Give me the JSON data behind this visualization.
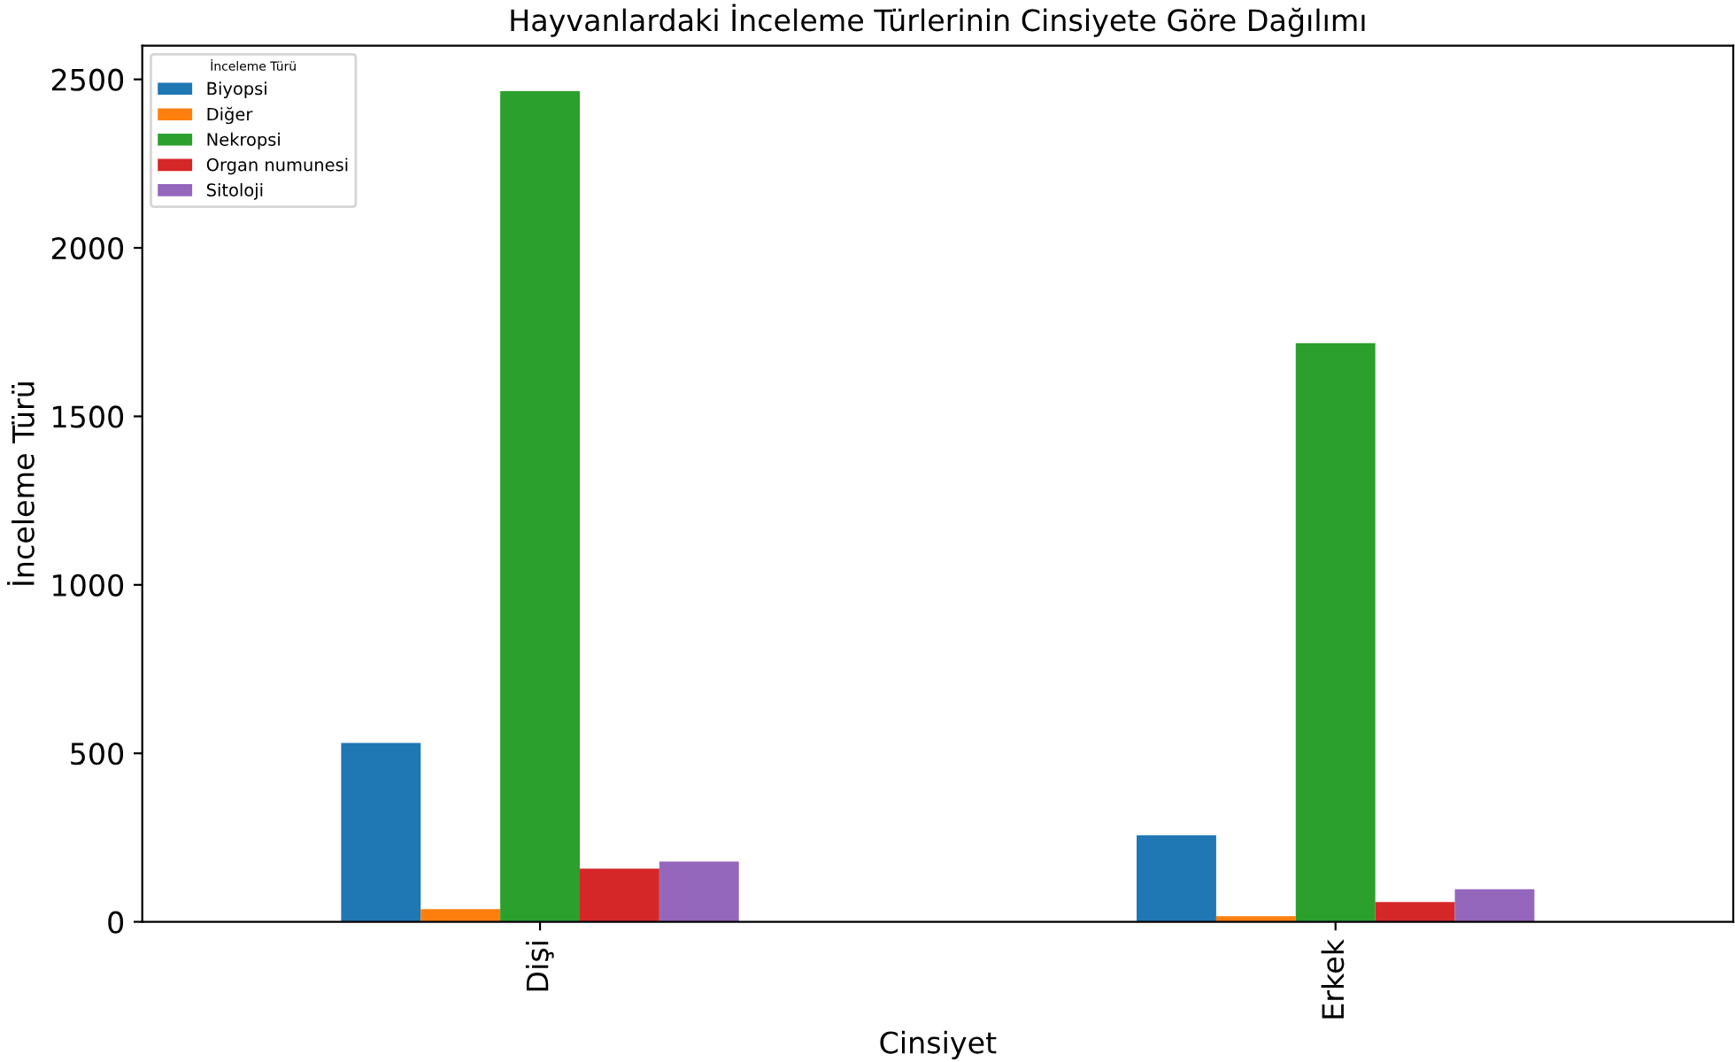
{
  "chart_data": {
    "type": "bar",
    "title": "Hayvanlardaki İnceleme Türlerinin Cinsiyete Göre Dağılımı",
    "xlabel": "Cinsiyet",
    "ylabel": "İnceleme Türü",
    "legend_title": "İnceleme Türü",
    "categories": [
      "Dişi",
      "Erkek"
    ],
    "series": [
      {
        "name": "Biyopsi",
        "color": "#1f77b4",
        "values": [
          531,
          257
        ]
      },
      {
        "name": "Diğer",
        "color": "#ff7f0e",
        "values": [
          38,
          17
        ]
      },
      {
        "name": "Nekropsi",
        "color": "#2ca02c",
        "values": [
          2465,
          1717
        ]
      },
      {
        "name": "Organ numunesi",
        "color": "#d62728",
        "values": [
          158,
          59
        ]
      },
      {
        "name": "Sitoloji",
        "color": "#9467bd",
        "values": [
          179,
          97
        ]
      }
    ],
    "ylim": [
      0,
      2600
    ],
    "yticks": [
      0,
      500,
      1000,
      1500,
      2000,
      2500
    ],
    "legend": "top left",
    "grid": false
  }
}
